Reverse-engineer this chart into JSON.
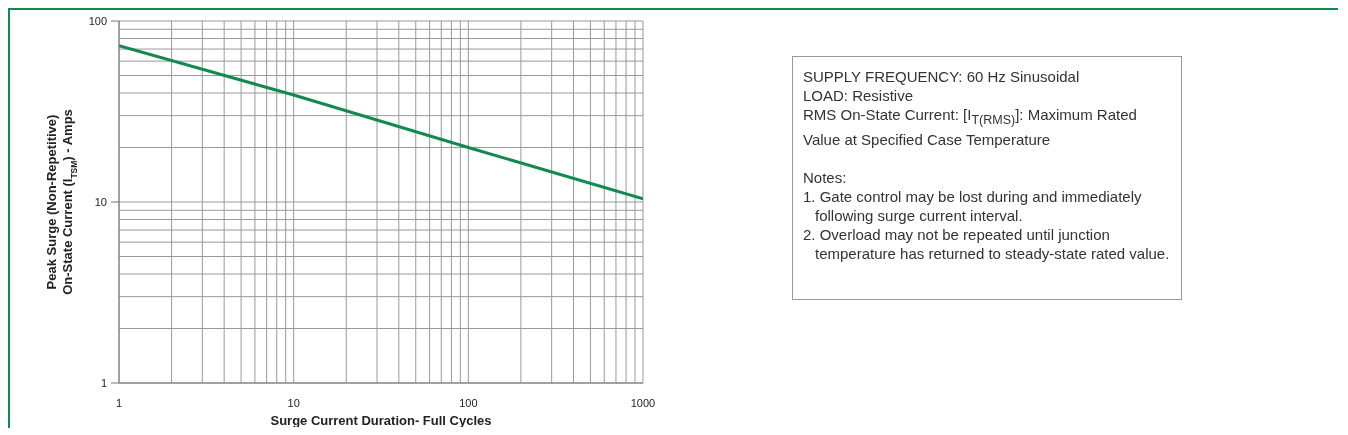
{
  "chart_data": {
    "type": "line",
    "xlabel": "Surge Current Duration- Full Cycles",
    "ylabel": "Peak Surge (Non-Repetitive)\nOn-State Current (I$_{TSM}$) - Amps",
    "x": [
      1,
      10,
      100,
      1000
    ],
    "series": [
      {
        "color": "#118a4f",
        "values": [
          73,
          39,
          20,
          10.4
        ]
      }
    ],
    "log": "xy",
    "xlim": [
      1,
      1000
    ],
    "ylim": [
      1,
      100
    ],
    "xticks": [
      1,
      {
        "value": 2,
        "label": null
      },
      {
        "value": 3,
        "label": null
      },
      {
        "value": 4,
        "label": null
      },
      {
        "value": 5,
        "label": null
      },
      {
        "value": 6,
        "label": null
      },
      {
        "value": 7,
        "label": null
      },
      {
        "value": 8,
        "label": null
      },
      {
        "value": 9,
        "label": null
      },
      10,
      {
        "value": 20,
        "label": null
      },
      {
        "value": 30,
        "label": null
      },
      {
        "value": 40,
        "label": null
      },
      {
        "value": 50,
        "label": null
      },
      {
        "value": 60,
        "label": null
      },
      {
        "value": 70,
        "label": null
      },
      {
        "value": 80,
        "label": null
      },
      {
        "value": 90,
        "label": null
      },
      100,
      {
        "value": 200,
        "label": null
      },
      {
        "value": 300,
        "label": null
      },
      {
        "value": 400,
        "label": null
      },
      {
        "value": 500,
        "label": null
      },
      {
        "value": 600,
        "label": null
      },
      {
        "value": 700,
        "label": null
      },
      {
        "value": 800,
        "label": null
      },
      {
        "value": 900,
        "label": null
      },
      1000
    ],
    "yticks": [
      1,
      {
        "value": 2,
        "label": null
      },
      {
        "value": 3,
        "label": null
      },
      {
        "value": 4,
        "label": null
      },
      {
        "value": 5,
        "label": null
      },
      {
        "value": 6,
        "label": null
      },
      {
        "value": 7,
        "label": null
      },
      {
        "value": 8,
        "label": null
      },
      {
        "value": 9,
        "label": null
      },
      10,
      {
        "value": 20,
        "label": null
      },
      {
        "value": 30,
        "label": null
      },
      {
        "value": 40,
        "label": null
      },
      {
        "value": 50,
        "label": null
      },
      {
        "value": 60,
        "label": null
      },
      {
        "value": 70,
        "label": null
      },
      {
        "value": 80,
        "label": null
      },
      {
        "value": 90,
        "label": null
      },
      100
    ],
    "grid": true,
    "marker": "none",
    "line_style": "solid",
    "legend": false,
    "annotations": [
      "SUPPLY FREQUENCY: 60 Hz Sinusoidal",
      "LOAD: Resistive",
      "RMS On-State Current: [I$_{T(RMS)}$]: Maximum Rated Value at Specified Case Temperature",
      "Notes:",
      "1. Gate control may be lost during and immediately following surge current interval.",
      "2. Overload may not be repeated until junction temperature has returned to steady-state rated value."
    ]
  }
}
